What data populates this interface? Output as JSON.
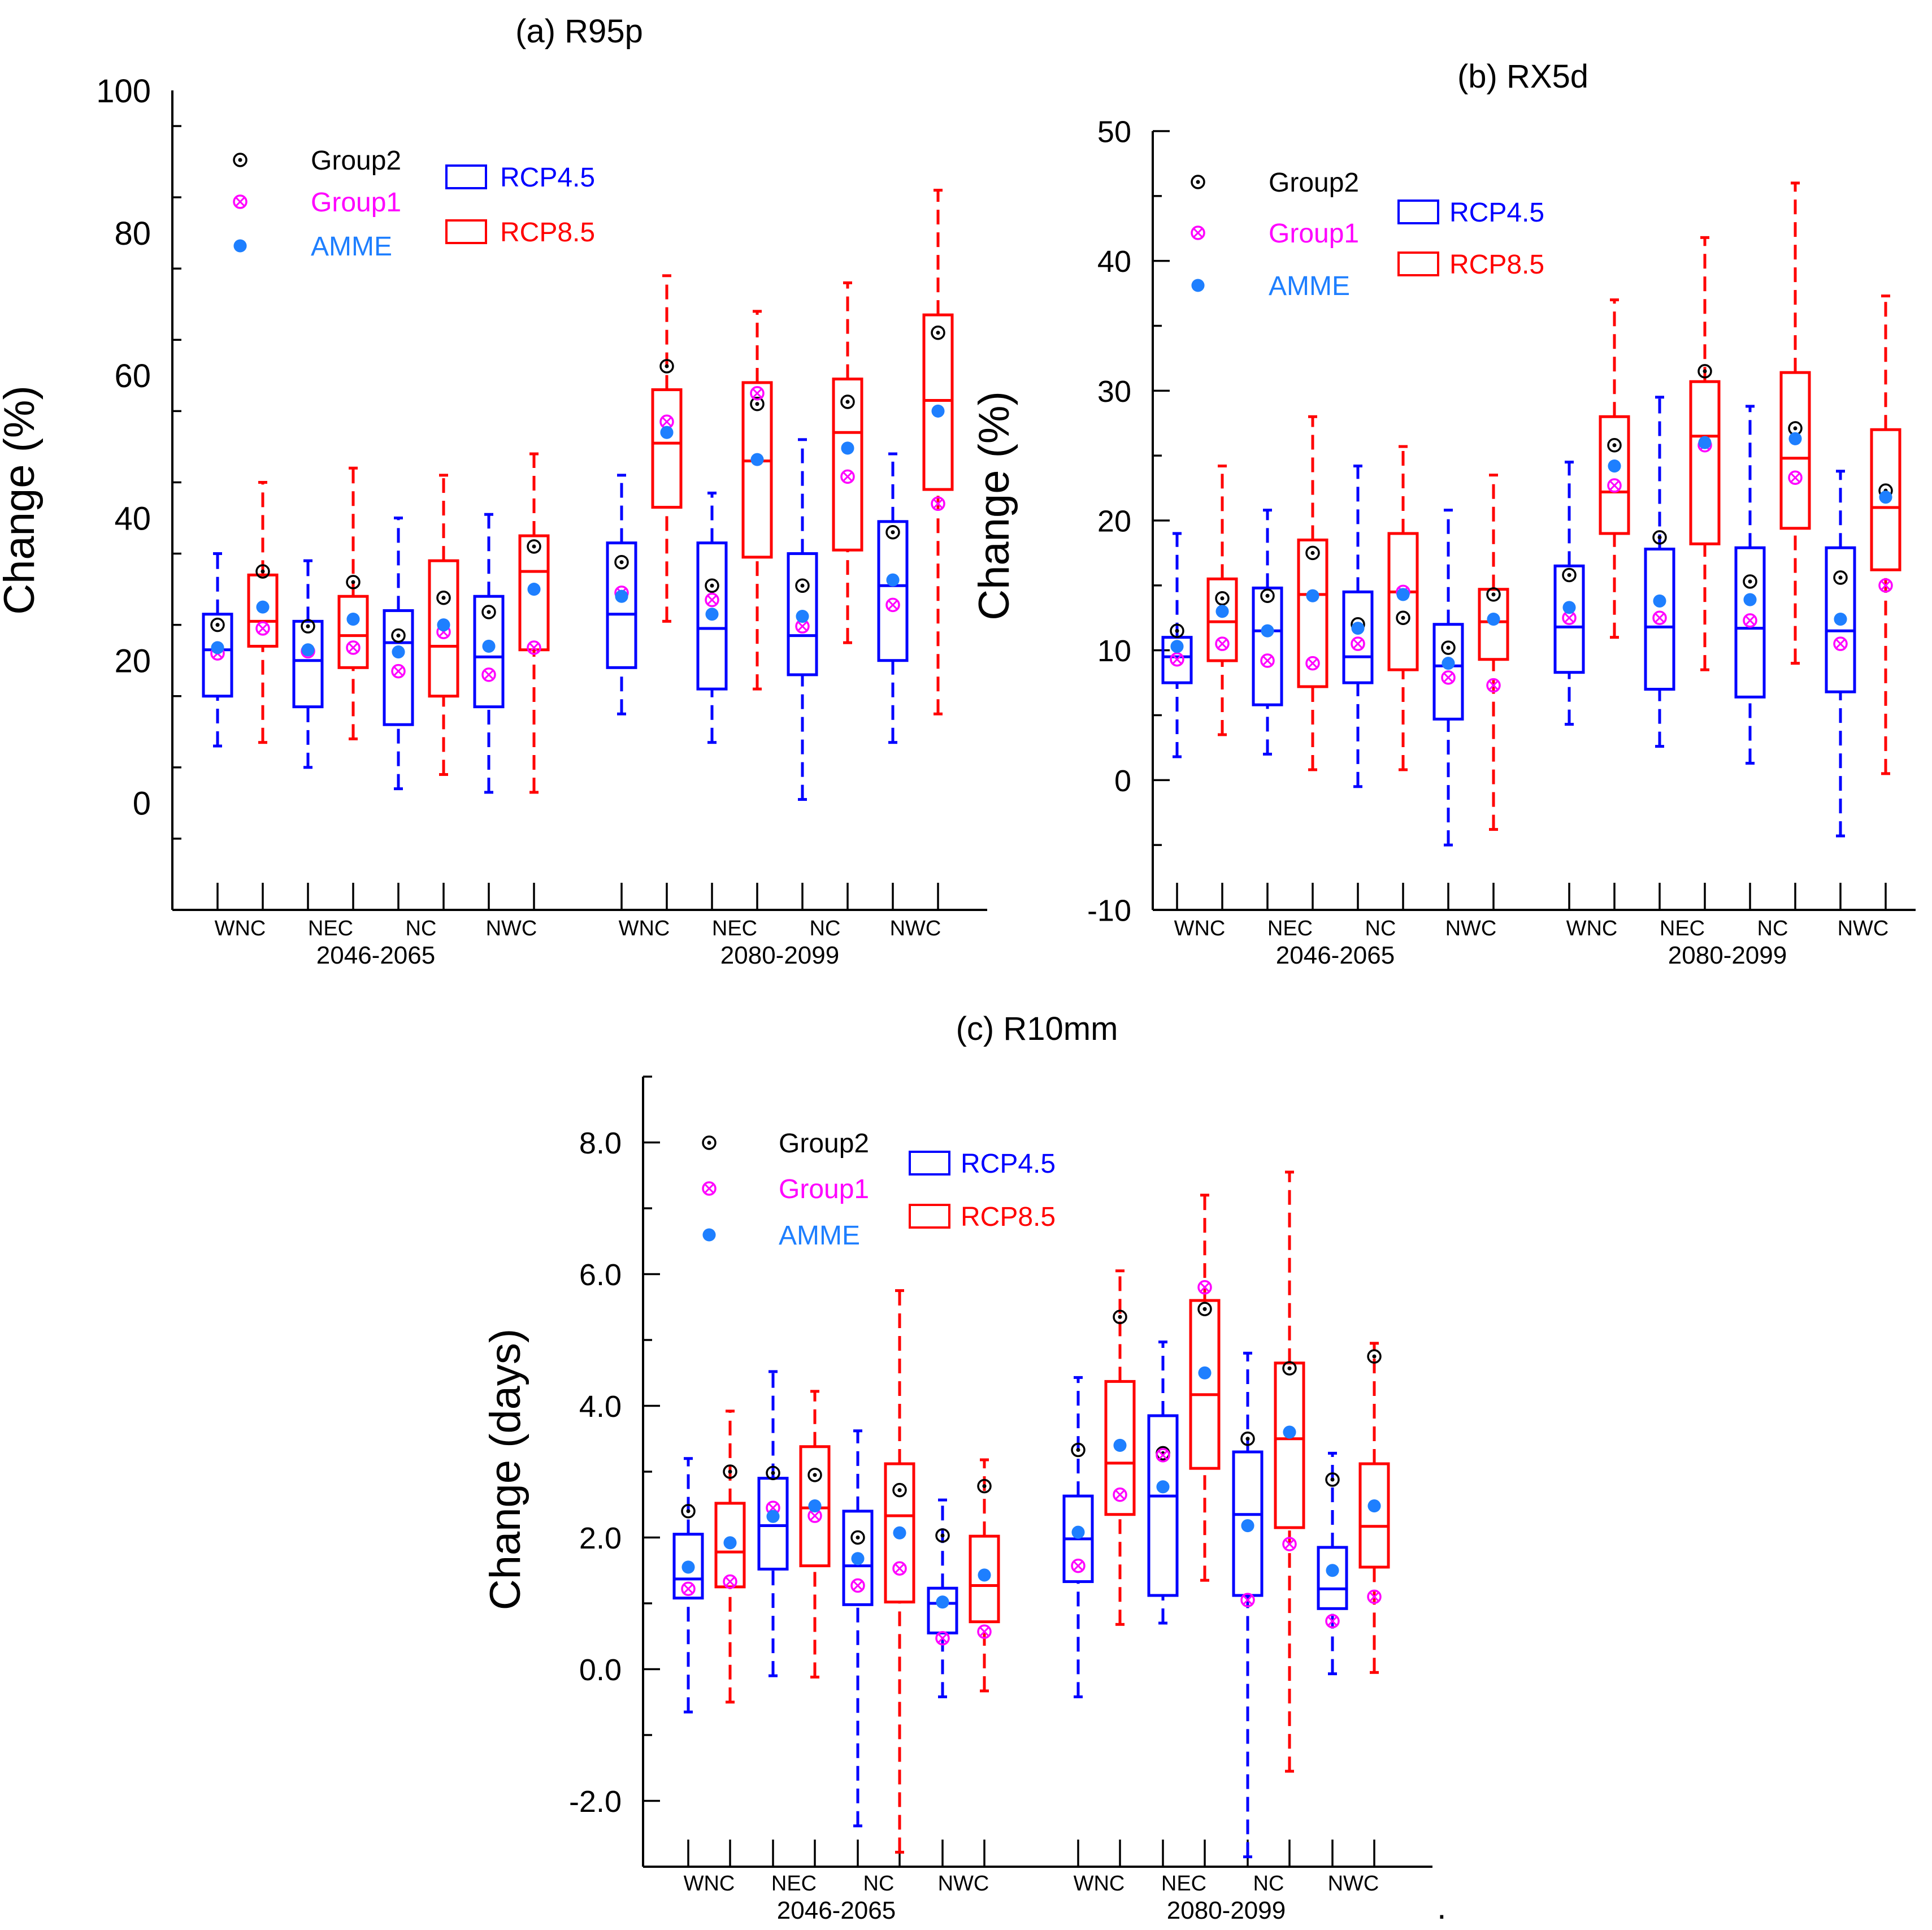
{
  "figure": {
    "trailing_mark": "."
  },
  "chart_data": [
    {
      "type": "box",
      "title": "(a) R95p",
      "ylabel": "Change (%)",
      "xlabel": "",
      "ylim": [
        -15,
        100
      ],
      "yticks": [
        0,
        20,
        40,
        60,
        80,
        100
      ],
      "ytick_labels": [
        "0",
        "20",
        "40",
        "60",
        "80",
        "100"
      ],
      "grid": false,
      "periods": [
        "2046-2065",
        "2080-2099"
      ],
      "regions": [
        "WNC",
        "NEC",
        "NC",
        "NWC"
      ],
      "scenarios": [
        {
          "name": "RCP4.5",
          "color": "#0000ff"
        },
        {
          "name": "RCP8.5",
          "color": "#ff0000"
        }
      ],
      "legend_markers": [
        {
          "name": "Group2",
          "symbol": "circle-dot",
          "color": "#000000"
        },
        {
          "name": "Group1",
          "symbol": "circle-x",
          "color": "#ff00ff"
        },
        {
          "name": "AMME",
          "symbol": "filled-circle",
          "color": "#1e7fff"
        }
      ],
      "boxes": [
        {
          "period": "2046-2065",
          "region": "WNC",
          "scenario": "RCP4.5",
          "whisker_low": 8,
          "q1": 15,
          "median": 21.5,
          "q3": 26.5,
          "whisker_high": 35,
          "amme": 21.8,
          "group1": 21,
          "group2": 25
        },
        {
          "period": "2046-2065",
          "region": "WNC",
          "scenario": "RCP8.5",
          "whisker_low": 8.5,
          "q1": 22,
          "median": 25.5,
          "q3": 32,
          "whisker_high": 45,
          "amme": 27.5,
          "group1": 24.5,
          "group2": 32.5
        },
        {
          "period": "2046-2065",
          "region": "NEC",
          "scenario": "RCP4.5",
          "whisker_low": 5,
          "q1": 13.5,
          "median": 20,
          "q3": 25.5,
          "whisker_high": 34,
          "amme": 21.5,
          "group1": 21.3,
          "group2": 24.8
        },
        {
          "period": "2046-2065",
          "region": "NEC",
          "scenario": "RCP8.5",
          "whisker_low": 9,
          "q1": 19,
          "median": 23.5,
          "q3": 29,
          "whisker_high": 47,
          "amme": 25.8,
          "group1": 21.8,
          "group2": 31
        },
        {
          "period": "2046-2065",
          "region": "NC",
          "scenario": "RCP4.5",
          "whisker_low": 2,
          "q1": 11,
          "median": 22.5,
          "q3": 27,
          "whisker_high": 40,
          "amme": 21.2,
          "group1": 18.5,
          "group2": 23.5
        },
        {
          "period": "2046-2065",
          "region": "NC",
          "scenario": "RCP8.5",
          "whisker_low": 4,
          "q1": 15,
          "median": 22,
          "q3": 34,
          "whisker_high": 46,
          "amme": 25,
          "group1": 24,
          "group2": 28.8
        },
        {
          "period": "2046-2065",
          "region": "NWC",
          "scenario": "RCP4.5",
          "whisker_low": 1.5,
          "q1": 13.5,
          "median": 20.5,
          "q3": 29,
          "whisker_high": 40.5,
          "amme": 22,
          "group1": 18,
          "group2": 26.8
        },
        {
          "period": "2046-2065",
          "region": "NWC",
          "scenario": "RCP8.5",
          "whisker_low": 1.5,
          "q1": 21.5,
          "median": 32.5,
          "q3": 37.5,
          "whisker_high": 49,
          "amme": 30,
          "group1": 21.8,
          "group2": 36
        },
        {
          "period": "2080-2099",
          "region": "WNC",
          "scenario": "RCP4.5",
          "whisker_low": 12.5,
          "q1": 19,
          "median": 26.5,
          "q3": 36.5,
          "whisker_high": 46,
          "amme": 29,
          "group1": 29.5,
          "group2": 33.8
        },
        {
          "period": "2080-2099",
          "region": "WNC",
          "scenario": "RCP8.5",
          "whisker_low": 25.5,
          "q1": 41.5,
          "median": 50.5,
          "q3": 58,
          "whisker_high": 74,
          "amme": 52,
          "group1": 53.5,
          "group2": 61.3
        },
        {
          "period": "2080-2099",
          "region": "NEC",
          "scenario": "RCP4.5",
          "whisker_low": 8.5,
          "q1": 16,
          "median": 24.5,
          "q3": 36.5,
          "whisker_high": 43.5,
          "amme": 26.5,
          "group1": 28.5,
          "group2": 30.5
        },
        {
          "period": "2080-2099",
          "region": "NEC",
          "scenario": "RCP8.5",
          "whisker_low": 16,
          "q1": 34.5,
          "median": 48,
          "q3": 59,
          "whisker_high": 69,
          "amme": 48.2,
          "group1": 57.5,
          "group2": 56
        },
        {
          "period": "2080-2099",
          "region": "NC",
          "scenario": "RCP4.5",
          "whisker_low": 0.5,
          "q1": 18,
          "median": 23.5,
          "q3": 35,
          "whisker_high": 51,
          "amme": 26.2,
          "group1": 24.8,
          "group2": 30.5
        },
        {
          "period": "2080-2099",
          "region": "NC",
          "scenario": "RCP8.5",
          "whisker_low": 22.5,
          "q1": 35.5,
          "median": 52,
          "q3": 59.5,
          "whisker_high": 73,
          "amme": 49.8,
          "group1": 45.8,
          "group2": 56.3
        },
        {
          "period": "2080-2099",
          "region": "NWC",
          "scenario": "RCP4.5",
          "whisker_low": 8.5,
          "q1": 20,
          "median": 30.5,
          "q3": 39.5,
          "whisker_high": 49,
          "amme": 31.3,
          "group1": 27.8,
          "group2": 38
        },
        {
          "period": "2080-2099",
          "region": "NWC",
          "scenario": "RCP8.5",
          "whisker_low": 12.5,
          "q1": 44,
          "median": 56.5,
          "q3": 68.5,
          "whisker_high": 86,
          "amme": 55,
          "group1": 42,
          "group2": 66
        }
      ]
    },
    {
      "type": "box",
      "title": "(b) RX5d",
      "ylabel": "Change (%)",
      "xlabel": "",
      "ylim": [
        -10,
        50
      ],
      "yticks": [
        -10,
        0,
        10,
        20,
        30,
        40,
        50
      ],
      "ytick_labels": [
        "-10",
        "0",
        "10",
        "20",
        "30",
        "40",
        "50"
      ],
      "grid": false,
      "periods": [
        "2046-2065",
        "2080-2099"
      ],
      "regions": [
        "WNC",
        "NEC",
        "NC",
        "NWC"
      ],
      "scenarios": [
        {
          "name": "RCP4.5",
          "color": "#0000ff"
        },
        {
          "name": "RCP8.5",
          "color": "#ff0000"
        }
      ],
      "legend_markers": [
        {
          "name": "Group2",
          "symbol": "circle-dot",
          "color": "#000000"
        },
        {
          "name": "Group1",
          "symbol": "circle-x",
          "color": "#ff00ff"
        },
        {
          "name": "AMME",
          "symbol": "filled-circle",
          "color": "#1e7fff"
        }
      ],
      "boxes": [
        {
          "period": "2046-2065",
          "region": "WNC",
          "scenario": "RCP4.5",
          "whisker_low": 1.8,
          "q1": 7.5,
          "median": 9.5,
          "q3": 11,
          "whisker_high": 19,
          "amme": 10.3,
          "group1": 9.3,
          "group2": 11.5
        },
        {
          "period": "2046-2065",
          "region": "WNC",
          "scenario": "RCP8.5",
          "whisker_low": 3.5,
          "q1": 9.2,
          "median": 12.2,
          "q3": 15.5,
          "whisker_high": 24.2,
          "amme": 13,
          "group1": 10.5,
          "group2": 14
        },
        {
          "period": "2046-2065",
          "region": "NEC",
          "scenario": "RCP4.5",
          "whisker_low": 2,
          "q1": 5.8,
          "median": 11.5,
          "q3": 14.8,
          "whisker_high": 20.8,
          "amme": 11.5,
          "group1": 9.2,
          "group2": 14.2
        },
        {
          "period": "2046-2065",
          "region": "NEC",
          "scenario": "RCP8.5",
          "whisker_low": 0.8,
          "q1": 7.2,
          "median": 14.3,
          "q3": 18.5,
          "whisker_high": 28,
          "amme": 14.2,
          "group1": 9,
          "group2": 17.5
        },
        {
          "period": "2046-2065",
          "region": "NC",
          "scenario": "RCP4.5",
          "whisker_low": -0.5,
          "q1": 7.5,
          "median": 9.5,
          "q3": 14.5,
          "whisker_high": 24.2,
          "amme": 11.7,
          "group1": 10.5,
          "group2": 12
        },
        {
          "period": "2046-2065",
          "region": "NC",
          "scenario": "RCP8.5",
          "whisker_low": 0.8,
          "q1": 8.5,
          "median": 14.5,
          "q3": 19,
          "whisker_high": 25.7,
          "amme": 14.3,
          "group1": 14.5,
          "group2": 12.5
        },
        {
          "period": "2046-2065",
          "region": "NWC",
          "scenario": "RCP4.5",
          "whisker_low": -5,
          "q1": 4.7,
          "median": 8.8,
          "q3": 12,
          "whisker_high": 20.8,
          "amme": 9,
          "group1": 7.9,
          "group2": 10.2
        },
        {
          "period": "2046-2065",
          "region": "NWC",
          "scenario": "RCP8.5",
          "whisker_low": -3.8,
          "q1": 9.3,
          "median": 12.2,
          "q3": 14.7,
          "whisker_high": 23.5,
          "amme": 12.4,
          "group1": 7.3,
          "group2": 14.3
        },
        {
          "period": "2080-2099",
          "region": "WNC",
          "scenario": "RCP4.5",
          "whisker_low": 4.3,
          "q1": 8.3,
          "median": 11.8,
          "q3": 16.5,
          "whisker_high": 24.5,
          "amme": 13.3,
          "group1": 12.5,
          "group2": 15.8
        },
        {
          "period": "2080-2099",
          "region": "WNC",
          "scenario": "RCP8.5",
          "whisker_low": 11,
          "q1": 19,
          "median": 22.2,
          "q3": 28,
          "whisker_high": 37,
          "amme": 24.2,
          "group1": 22.7,
          "group2": 25.8
        },
        {
          "period": "2080-2099",
          "region": "NEC",
          "scenario": "RCP4.5",
          "whisker_low": 2.6,
          "q1": 7,
          "median": 11.8,
          "q3": 17.8,
          "whisker_high": 29.5,
          "amme": 13.8,
          "group1": 12.5,
          "group2": 18.7
        },
        {
          "period": "2080-2099",
          "region": "NEC",
          "scenario": "RCP8.5",
          "whisker_low": 8.5,
          "q1": 18.2,
          "median": 26.5,
          "q3": 30.7,
          "whisker_high": 41.8,
          "amme": 26,
          "group1": 25.8,
          "group2": 31.5
        },
        {
          "period": "2080-2099",
          "region": "NC",
          "scenario": "RCP4.5",
          "whisker_low": 1.3,
          "q1": 6.4,
          "median": 11.7,
          "q3": 17.9,
          "whisker_high": 28.8,
          "amme": 13.9,
          "group1": 12.3,
          "group2": 15.3
        },
        {
          "period": "2080-2099",
          "region": "NC",
          "scenario": "RCP8.5",
          "whisker_low": 9,
          "q1": 19.4,
          "median": 24.8,
          "q3": 31.4,
          "whisker_high": 46,
          "amme": 26.3,
          "group1": 23.3,
          "group2": 27.1
        },
        {
          "period": "2080-2099",
          "region": "NWC",
          "scenario": "RCP4.5",
          "whisker_low": -4.3,
          "q1": 6.8,
          "median": 11.5,
          "q3": 17.9,
          "whisker_high": 23.8,
          "amme": 12.4,
          "group1": 10.5,
          "group2": 15.6
        },
        {
          "period": "2080-2099",
          "region": "NWC",
          "scenario": "RCP8.5",
          "whisker_low": 0.5,
          "q1": 16.2,
          "median": 21,
          "q3": 27,
          "whisker_high": 37.3,
          "amme": 21.8,
          "group1": 15,
          "group2": 22.3
        }
      ]
    },
    {
      "type": "box",
      "title": "(c) R10mm",
      "ylabel": "Change (days)",
      "xlabel": "",
      "ylim": [
        -3,
        9
      ],
      "yticks": [
        -2,
        0,
        2,
        4,
        6,
        8
      ],
      "ytick_labels": [
        "-2.0",
        "0.0",
        "2.0",
        "4.0",
        "6.0",
        "8.0"
      ],
      "grid": false,
      "periods": [
        "2046-2065",
        "2080-2099"
      ],
      "regions": [
        "WNC",
        "NEC",
        "NC",
        "NWC"
      ],
      "scenarios": [
        {
          "name": "RCP4.5",
          "color": "#0000ff"
        },
        {
          "name": "RCP8.5",
          "color": "#ff0000"
        }
      ],
      "legend_markers": [
        {
          "name": "Group2",
          "symbol": "circle-dot",
          "color": "#000000"
        },
        {
          "name": "Group1",
          "symbol": "circle-x",
          "color": "#ff00ff"
        },
        {
          "name": "AMME",
          "symbol": "filled-circle",
          "color": "#1e7fff"
        }
      ],
      "boxes": [
        {
          "period": "2046-2065",
          "region": "WNC",
          "scenario": "RCP4.5",
          "whisker_low": -0.65,
          "q1": 1.08,
          "median": 1.37,
          "q3": 2.05,
          "whisker_high": 3.2,
          "amme": 1.55,
          "group1": 1.22,
          "group2": 2.4
        },
        {
          "period": "2046-2065",
          "region": "WNC",
          "scenario": "RCP8.5",
          "whisker_low": -0.5,
          "q1": 1.25,
          "median": 1.78,
          "q3": 2.52,
          "whisker_high": 3.92,
          "amme": 1.92,
          "group1": 1.33,
          "group2": 3
        },
        {
          "period": "2046-2065",
          "region": "NEC",
          "scenario": "RCP4.5",
          "whisker_low": -0.1,
          "q1": 1.52,
          "median": 2.18,
          "q3": 2.9,
          "whisker_high": 4.52,
          "amme": 2.32,
          "group1": 2.45,
          "group2": 2.98
        },
        {
          "period": "2046-2065",
          "region": "NEC",
          "scenario": "RCP8.5",
          "whisker_low": -0.12,
          "q1": 1.57,
          "median": 2.45,
          "q3": 3.38,
          "whisker_high": 4.22,
          "amme": 2.48,
          "group1": 2.33,
          "group2": 2.95
        },
        {
          "period": "2046-2065",
          "region": "NC",
          "scenario": "RCP4.5",
          "whisker_low": -2.38,
          "q1": 0.98,
          "median": 1.57,
          "q3": 2.4,
          "whisker_high": 3.62,
          "amme": 1.68,
          "group1": 1.27,
          "group2": 2
        },
        {
          "period": "2046-2065",
          "region": "NC",
          "scenario": "RCP8.5",
          "whisker_low": -2.78,
          "q1": 1.02,
          "median": 2.33,
          "q3": 3.12,
          "whisker_high": 5.75,
          "amme": 2.07,
          "group1": 1.53,
          "group2": 2.72
        },
        {
          "period": "2046-2065",
          "region": "NWC",
          "scenario": "RCP4.5",
          "whisker_low": -0.42,
          "q1": 0.55,
          "median": 1,
          "q3": 1.23,
          "whisker_high": 2.57,
          "amme": 1.02,
          "group1": 0.47,
          "group2": 2.03
        },
        {
          "period": "2046-2065",
          "region": "NWC",
          "scenario": "RCP8.5",
          "whisker_low": -0.33,
          "q1": 0.72,
          "median": 1.27,
          "q3": 2.02,
          "whisker_high": 3.18,
          "amme": 1.43,
          "group1": 0.57,
          "group2": 2.78
        },
        {
          "period": "2080-2099",
          "region": "WNC",
          "scenario": "RCP4.5",
          "whisker_low": -0.42,
          "q1": 1.33,
          "median": 1.98,
          "q3": 2.63,
          "whisker_high": 4.43,
          "amme": 2.08,
          "group1": 1.57,
          "group2": 3.33
        },
        {
          "period": "2080-2099",
          "region": "WNC",
          "scenario": "RCP8.5",
          "whisker_low": 0.68,
          "q1": 2.35,
          "median": 3.13,
          "q3": 4.37,
          "whisker_high": 6.05,
          "amme": 3.4,
          "group1": 2.65,
          "group2": 5.35
        },
        {
          "period": "2080-2099",
          "region": "NEC",
          "scenario": "RCP4.5",
          "whisker_low": 0.7,
          "q1": 1.12,
          "median": 2.63,
          "q3": 3.85,
          "whisker_high": 4.97,
          "amme": 2.77,
          "group1": 3.25,
          "group2": 3.28
        },
        {
          "period": "2080-2099",
          "region": "NEC",
          "scenario": "RCP8.5",
          "whisker_low": 1.35,
          "q1": 3.05,
          "median": 4.17,
          "q3": 5.6,
          "whisker_high": 7.2,
          "amme": 4.5,
          "group1": 5.8,
          "group2": 5.47
        },
        {
          "period": "2080-2099",
          "region": "NC",
          "scenario": "RCP4.5",
          "whisker_low": -2.85,
          "q1": 1.12,
          "median": 2.35,
          "q3": 3.3,
          "whisker_high": 4.8,
          "amme": 2.18,
          "group1": 1.05,
          "group2": 3.5
        },
        {
          "period": "2080-2099",
          "region": "NC",
          "scenario": "RCP8.5",
          "whisker_low": -1.55,
          "q1": 2.15,
          "median": 3.5,
          "q3": 4.65,
          "whisker_high": 7.55,
          "amme": 3.6,
          "group1": 1.9,
          "group2": 4.57
        },
        {
          "period": "2080-2099",
          "region": "NWC",
          "scenario": "RCP4.5",
          "whisker_low": -0.07,
          "q1": 0.92,
          "median": 1.22,
          "q3": 1.85,
          "whisker_high": 3.28,
          "amme": 1.5,
          "group1": 0.73,
          "group2": 2.88
        },
        {
          "period": "2080-2099",
          "region": "NWC",
          "scenario": "RCP8.5",
          "whisker_low": -0.05,
          "q1": 1.55,
          "median": 2.17,
          "q3": 3.12,
          "whisker_high": 4.95,
          "amme": 2.48,
          "group1": 1.1,
          "group2": 4.75
        }
      ]
    }
  ]
}
